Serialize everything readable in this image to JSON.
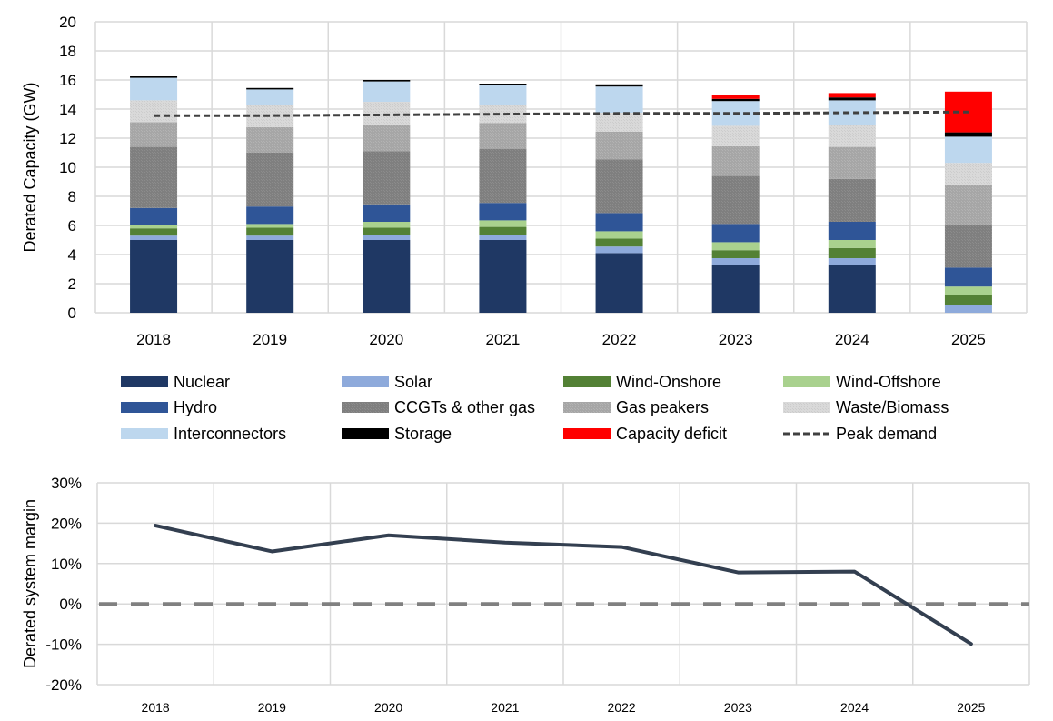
{
  "chart_data": [
    {
      "type": "bar",
      "stacked": true,
      "title": "",
      "xlabel": "",
      "ylabel": "Derated Capacity (GW)",
      "ylim": [
        0,
        20
      ],
      "yticks": [
        0,
        2,
        4,
        6,
        8,
        10,
        12,
        14,
        16,
        18,
        20
      ],
      "grid": true,
      "legend_position": "bottom",
      "categories": [
        "2018",
        "2019",
        "2020",
        "2021",
        "2022",
        "2023",
        "2024",
        "2025"
      ],
      "series": [
        {
          "name": "Nuclear",
          "color": "#1f3864",
          "values": [
            5.0,
            5.0,
            5.0,
            5.0,
            4.1,
            3.25,
            3.25,
            0.0
          ]
        },
        {
          "name": "Solar",
          "color": "#8eaadb",
          "values": [
            0.3,
            0.3,
            0.35,
            0.35,
            0.45,
            0.5,
            0.5,
            0.56
          ]
        },
        {
          "name": "Wind-Onshore",
          "color": "#538135",
          "values": [
            0.5,
            0.55,
            0.5,
            0.55,
            0.55,
            0.55,
            0.7,
            0.64
          ]
        },
        {
          "name": "Wind-Offshore",
          "color": "#a9d18e",
          "values": [
            0.2,
            0.25,
            0.4,
            0.45,
            0.5,
            0.55,
            0.55,
            0.6
          ]
        },
        {
          "name": "Hydro",
          "color": "#2f5597",
          "values": [
            1.2,
            1.2,
            1.2,
            1.2,
            1.25,
            1.25,
            1.25,
            1.3
          ]
        },
        {
          "name": "CCGTs & other gas",
          "color": "#7f7f7f",
          "values": [
            4.2,
            3.7,
            3.65,
            3.7,
            3.7,
            3.3,
            2.95,
            2.9
          ]
        },
        {
          "name": "Gas peakers",
          "color": "#a6a6a6",
          "values": [
            1.7,
            1.75,
            1.8,
            1.8,
            1.9,
            2.05,
            2.2,
            2.8
          ]
        },
        {
          "name": "Waste/Biomass",
          "color": "#d9d9d9",
          "values": [
            1.5,
            1.5,
            1.6,
            1.2,
            1.3,
            1.4,
            1.5,
            1.5
          ]
        },
        {
          "name": "Interconnectors",
          "color": "#bdd7ee",
          "values": [
            1.55,
            1.1,
            1.4,
            1.4,
            1.8,
            1.7,
            1.7,
            1.8
          ]
        },
        {
          "name": "Storage",
          "color": "#000000",
          "values": [
            0.1,
            0.1,
            0.1,
            0.1,
            0.15,
            0.15,
            0.2,
            0.3
          ]
        },
        {
          "name": "Capacity deficit",
          "color": "#ff0000",
          "values": [
            0,
            0,
            0,
            0,
            0,
            0.3,
            0.3,
            2.8
          ]
        }
      ],
      "lines": [
        {
          "name": "Peak demand",
          "color": "#404040",
          "style": "dashed",
          "values": [
            13.55,
            13.55,
            13.6,
            13.65,
            13.7,
            13.7,
            13.75,
            13.8
          ]
        }
      ],
      "legend": [
        "Nuclear",
        "Solar",
        "Wind-Onshore",
        "Wind-Offshore",
        "Hydro",
        "CCGTs & other gas",
        "Gas peakers",
        "Waste/Biomass",
        "Interconnectors",
        "Storage",
        "Capacity deficit",
        "Peak demand"
      ]
    },
    {
      "type": "line",
      "title": "",
      "xlabel": "",
      "ylabel": "Derated system margin",
      "ylim": [
        -20,
        30
      ],
      "yticks": [
        -20,
        -10,
        0,
        10,
        20,
        30
      ],
      "ytick_labels": [
        "-20%",
        "-10%",
        "0%",
        "10%",
        "20%",
        "30%"
      ],
      "grid": true,
      "categories": [
        "2018",
        "2019",
        "2020",
        "2021",
        "2022",
        "2023",
        "2024",
        "2025"
      ],
      "series": [
        {
          "name": "Derated system margin",
          "color": "#333f50",
          "unit": "%",
          "values": [
            19.4,
            13.0,
            17.0,
            15.2,
            14.1,
            7.8,
            8.0,
            -9.9
          ]
        }
      ],
      "reference_lines": [
        {
          "name": "Zero margin",
          "value": 0,
          "color": "#808080",
          "style": "dashed"
        }
      ]
    }
  ]
}
